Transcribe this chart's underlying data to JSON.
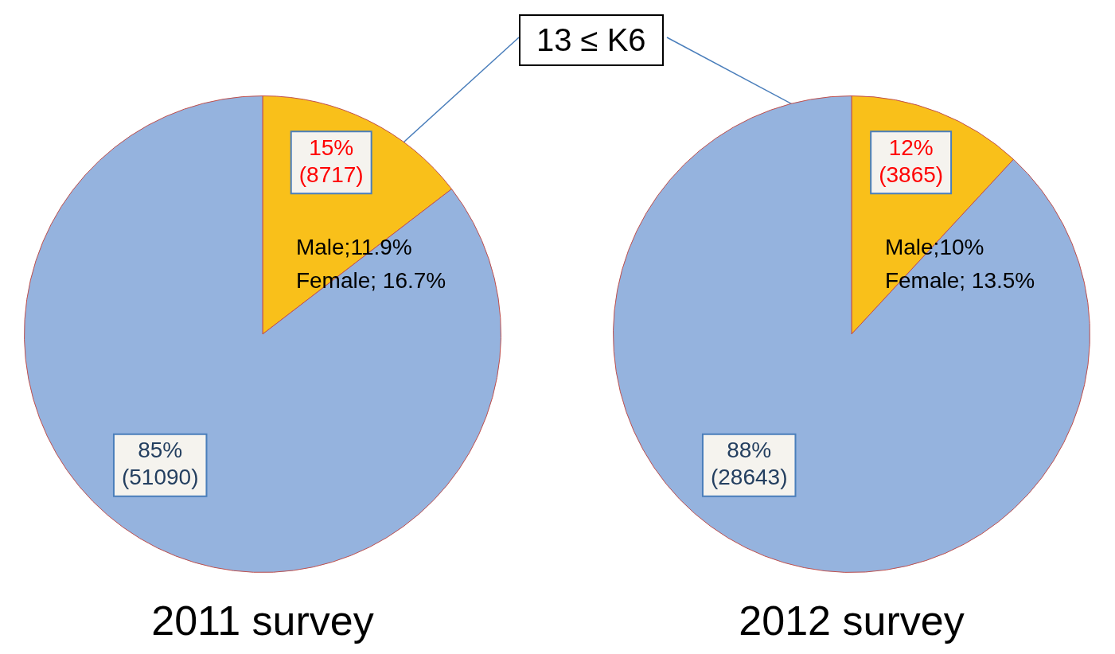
{
  "chart_data": [
    {
      "type": "pie",
      "title": "2011 survey",
      "categories": [
        null,
        null
      ],
      "values": [
        8717,
        51090
      ],
      "colors": [
        "#f9c01a",
        "#95b3de"
      ],
      "value_labels": [
        "15%\n(8717)",
        "85%\n(51090)"
      ],
      "annotations": [
        "13 ≤ K6",
        "Male;11.9%",
        "Female; 16.7%"
      ]
    },
    {
      "type": "pie",
      "title": "2012 survey",
      "categories": [
        null,
        null
      ],
      "values": [
        3865,
        28643
      ],
      "colors": [
        "#f9c01a",
        "#95b3de"
      ],
      "value_labels": [
        "12%\n(3865)",
        "88%\n(28643)"
      ],
      "annotations": [
        "Male;10%",
        "Female; 13.5%"
      ]
    }
  ]
}
